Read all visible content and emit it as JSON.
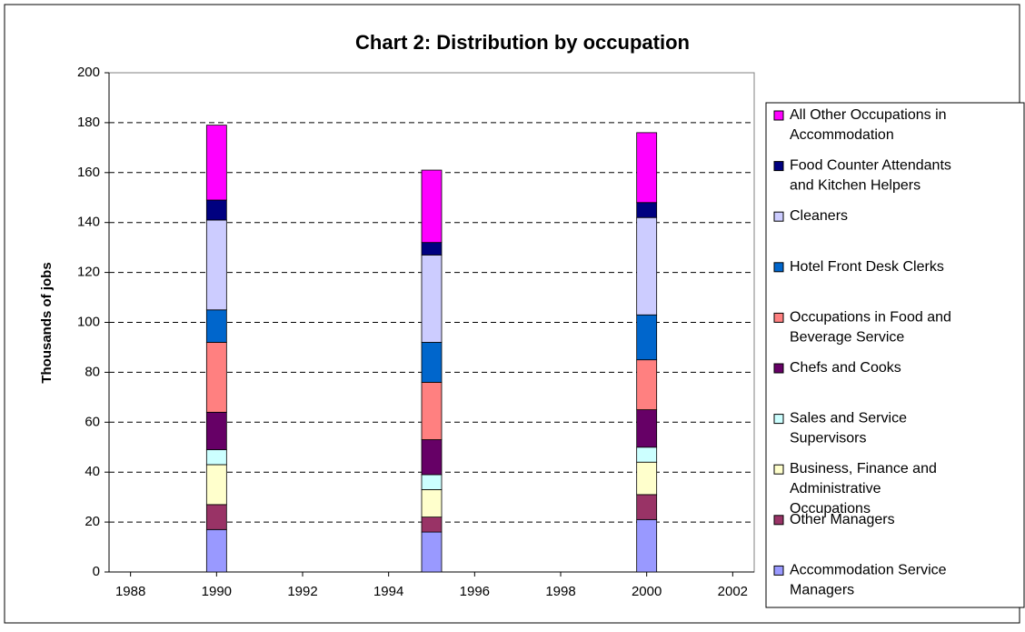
{
  "chart_data": {
    "type": "bar",
    "stacked": true,
    "title": "Chart 2: Distribution by occupation",
    "y_label": "Thousands of jobs",
    "x": [
      1990,
      1995,
      2000
    ],
    "xlim": [
      1987.5,
      2002.5
    ],
    "xticks": [
      1988,
      1990,
      1992,
      1994,
      1996,
      1998,
      2000,
      2002
    ],
    "ylim": [
      0,
      200
    ],
    "yticks": [
      0,
      20,
      40,
      60,
      80,
      100,
      120,
      140,
      160,
      180,
      200
    ],
    "grid": true,
    "legend": "right",
    "series": [
      {
        "name": "Accommodation Service Managers",
        "color": "#9999ff",
        "values": [
          17,
          16,
          21
        ]
      },
      {
        "name": "Other Managers",
        "color": "#993366",
        "values": [
          10,
          6,
          10
        ]
      },
      {
        "name": "Business, Finance and Administrative Occupations",
        "color": "#ffffcc",
        "values": [
          16,
          11,
          13
        ]
      },
      {
        "name": "Sales and Service Supervisors",
        "color": "#ccffff",
        "values": [
          6,
          6,
          6
        ]
      },
      {
        "name": "Chefs and Cooks",
        "color": "#660066",
        "values": [
          15,
          14,
          15
        ]
      },
      {
        "name": "Occupations in Food and Beverage Service",
        "color": "#ff8080",
        "values": [
          28,
          23,
          20
        ]
      },
      {
        "name": "Hotel Front Desk Clerks",
        "color": "#0066cc",
        "values": [
          13,
          16,
          18
        ]
      },
      {
        "name": "Cleaners",
        "color": "#ccccff",
        "values": [
          36,
          35,
          39
        ]
      },
      {
        "name": "Food Counter Attendants and Kitchen Helpers",
        "color": "#000080",
        "values": [
          8,
          5,
          6
        ]
      },
      {
        "name": "All Other Occupations in Accommodation",
        "color": "#ff00ff",
        "values": [
          30,
          29,
          28
        ]
      }
    ]
  }
}
